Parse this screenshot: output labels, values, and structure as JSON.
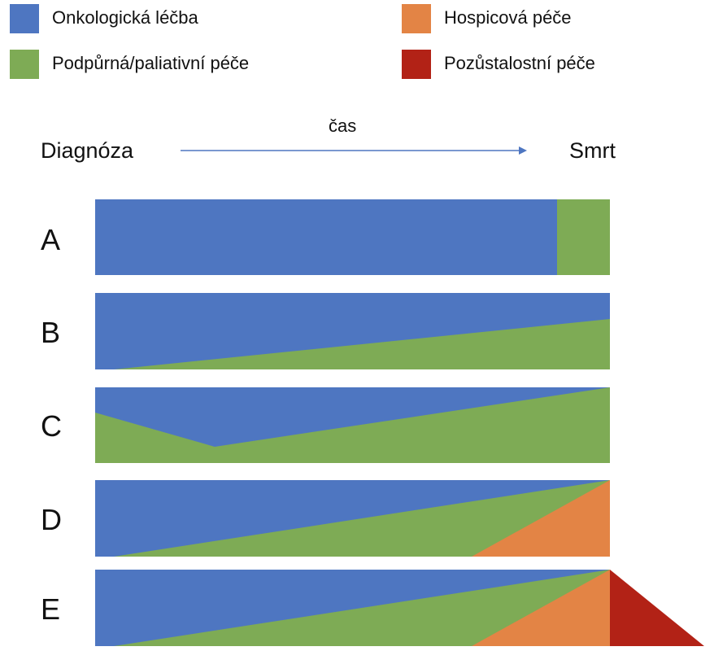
{
  "legend": {
    "items": [
      {
        "label": "Onkologická léčba",
        "color": "#4E76C1"
      },
      {
        "label": "Hospicová péče",
        "color": "#E38445"
      },
      {
        "label": "Podpůrná/paliativní péče",
        "color": "#7EAB55"
      },
      {
        "label": "Pozůstalostní péče",
        "color": "#B22216"
      }
    ]
  },
  "timeline": {
    "start_label": "Diagnóza",
    "end_label": "Smrt",
    "arrow_label": "čas"
  },
  "rows": [
    {
      "letter": "A"
    },
    {
      "letter": "B"
    },
    {
      "letter": "C"
    },
    {
      "letter": "D"
    },
    {
      "letter": "E"
    }
  ]
}
